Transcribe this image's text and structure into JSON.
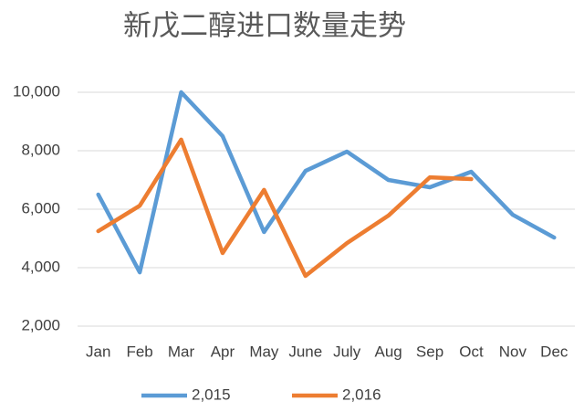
{
  "chart_data": {
    "type": "line",
    "title": "新戊二醇进口数量走势",
    "categories": [
      "Jan",
      "Feb",
      "Mar",
      "Apr",
      "May",
      "June",
      "July",
      "Aug",
      "Sep",
      "Oct",
      "Nov",
      "Dec"
    ],
    "series": [
      {
        "name": "2,015",
        "color": "#5b9bd5",
        "values": [
          6500,
          3840,
          10000,
          8500,
          5220,
          7310,
          7970,
          7000,
          6750,
          7280,
          5810,
          5030
        ]
      },
      {
        "name": "2,016",
        "color": "#ed7d31",
        "values": [
          5250,
          6120,
          8380,
          4500,
          6660,
          3720,
          4840,
          5780,
          7090,
          7030,
          null,
          null
        ]
      }
    ],
    "ylim": [
      2000,
      10000
    ],
    "yticks": [
      {
        "value": 2000,
        "label": "2,000"
      },
      {
        "value": 4000,
        "label": "4,000"
      },
      {
        "value": 6000,
        "label": "6,000"
      },
      {
        "value": 8000,
        "label": "8,000"
      },
      {
        "value": 10000,
        "label": "10,000"
      }
    ],
    "grid": true,
    "legend": "bottom"
  }
}
